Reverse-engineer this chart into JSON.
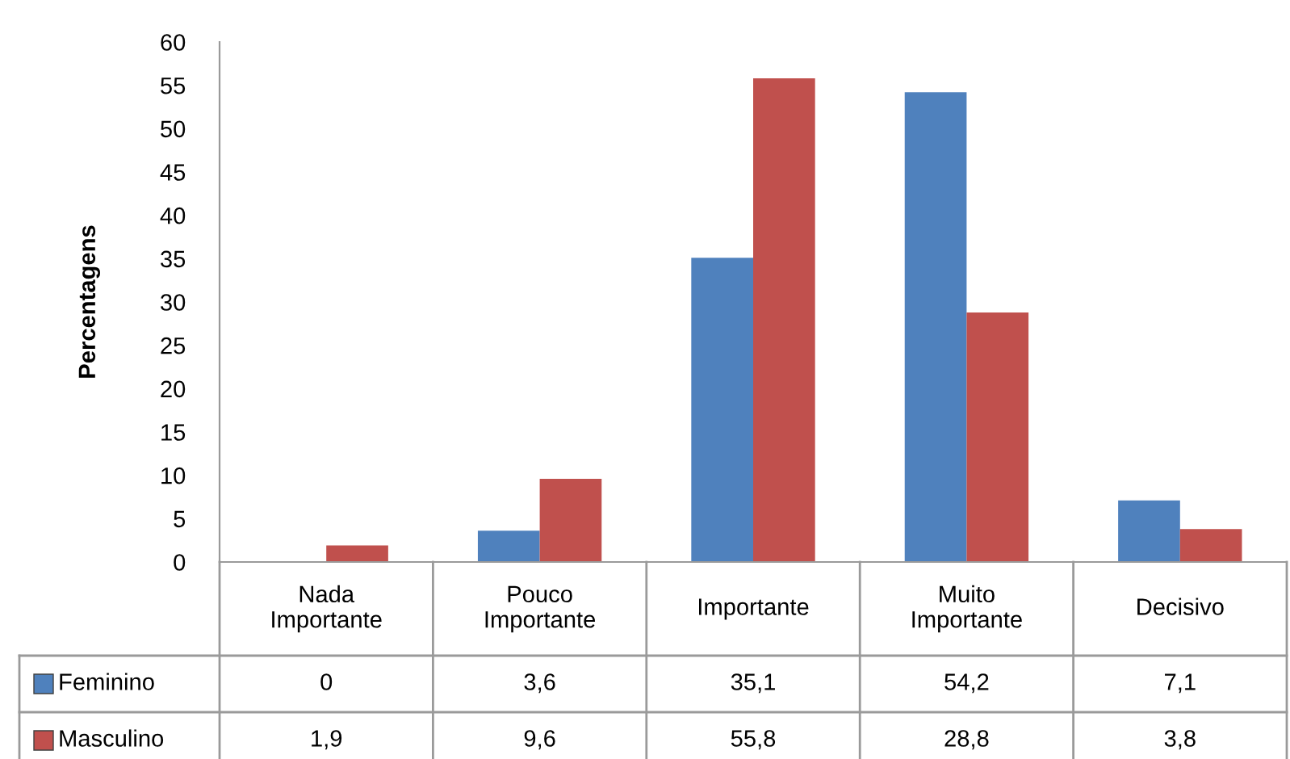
{
  "chart_data": {
    "type": "bar",
    "ylabel": "Percentagens",
    "categories": [
      "Nada Importante",
      "Pouco Importante",
      "Importante",
      "Muito Importante",
      "Decisivo"
    ],
    "series": [
      {
        "name": "Feminino",
        "color": "#4f81bd",
        "values": [
          0,
          3.6,
          35.1,
          54.2,
          7.1
        ],
        "value_labels": [
          "0",
          "3,6",
          "35,1",
          "54,2",
          "7,1"
        ]
      },
      {
        "name": "Masculino",
        "color": "#c0504d",
        "values": [
          1.9,
          9.6,
          55.8,
          28.8,
          3.8
        ],
        "value_labels": [
          "1,9",
          "9,6",
          "55,8",
          "28,8",
          "3,8"
        ]
      }
    ],
    "ylim": [
      0,
      60
    ],
    "yticks": [
      0,
      5,
      10,
      15,
      20,
      25,
      30,
      35,
      40,
      45,
      50,
      55,
      60
    ],
    "grid": false,
    "legend": "bottom"
  }
}
